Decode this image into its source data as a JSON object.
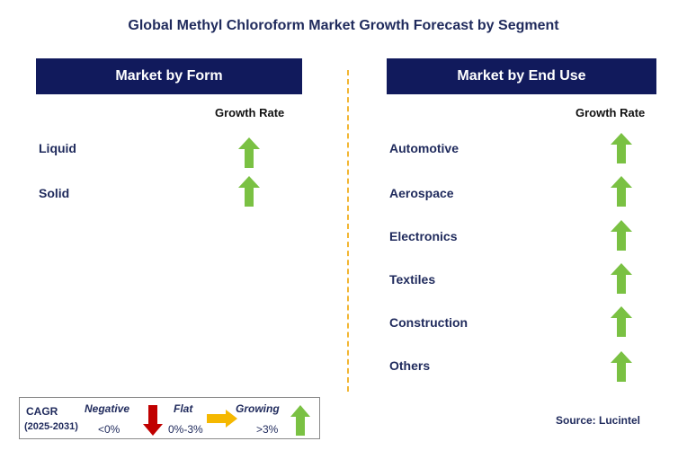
{
  "title": "Global Methyl Chloroform Market Growth Forecast by Segment",
  "left_panel": {
    "header": "Market by Form",
    "growth_rate_label": "Growth Rate",
    "rows": [
      {
        "label": "Liquid",
        "trend": "growing"
      },
      {
        "label": "Solid",
        "trend": "growing"
      }
    ]
  },
  "right_panel": {
    "header": "Market by End Use",
    "growth_rate_label": "Growth Rate",
    "rows": [
      {
        "label": "Automotive",
        "trend": "growing"
      },
      {
        "label": "Aerospace",
        "trend": "growing"
      },
      {
        "label": "Electronics",
        "trend": "growing"
      },
      {
        "label": "Textiles",
        "trend": "growing"
      },
      {
        "label": "Construction",
        "trend": "growing"
      },
      {
        "label": "Others",
        "trend": "growing"
      }
    ]
  },
  "legend": {
    "cagr_label": "CAGR",
    "period": "(2025-2031)",
    "negative_label": "Negative",
    "negative_value": "<0%",
    "flat_label": "Flat",
    "flat_value": "0%-3%",
    "growing_label": "Growing",
    "growing_value": ">3%"
  },
  "source": "Source: Lucintel",
  "colors": {
    "header_bg": "#111a5c",
    "growing": "#7ac143",
    "negative": "#c00000",
    "flat": "#f5b800",
    "divider": "#f2b632"
  }
}
